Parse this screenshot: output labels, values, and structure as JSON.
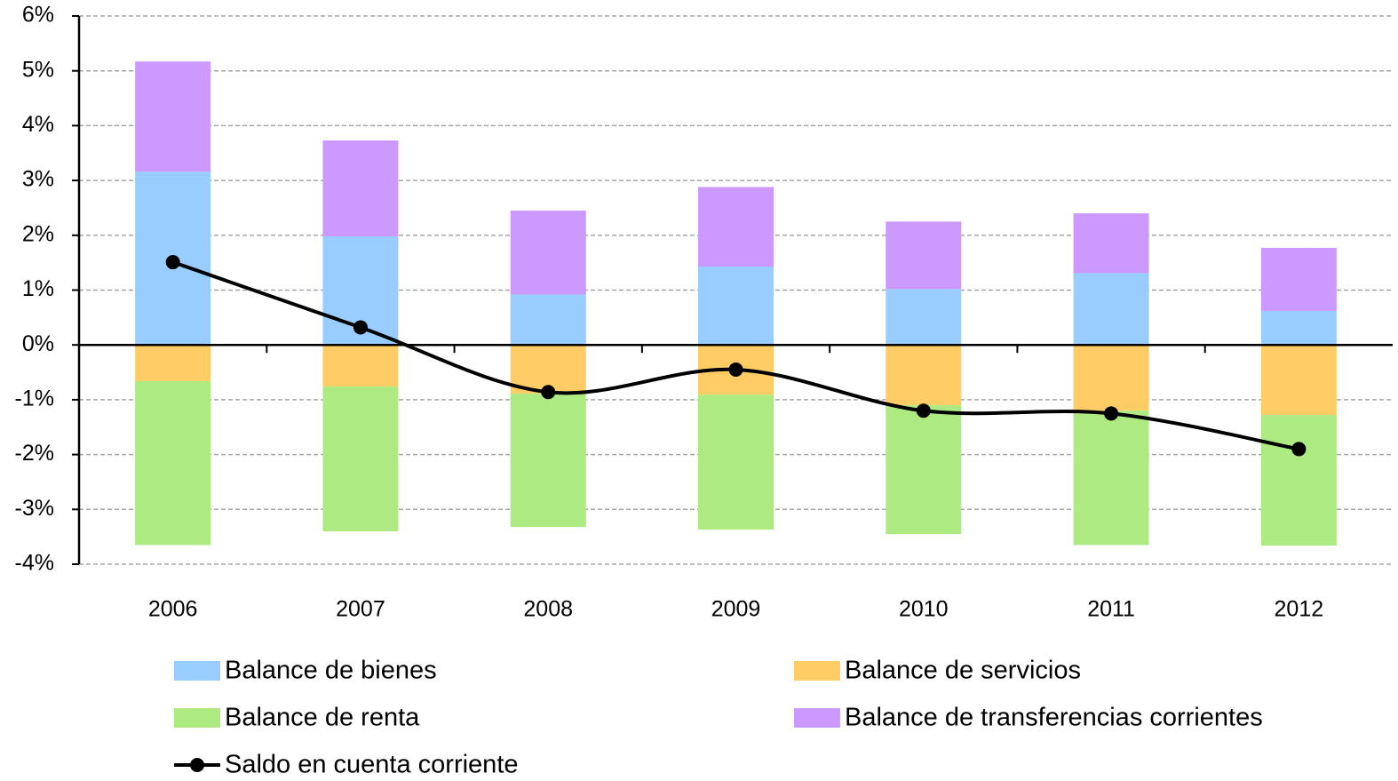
{
  "chart_data": {
    "type": "bar",
    "categories": [
      "2006",
      "2007",
      "2008",
      "2009",
      "2010",
      "2011",
      "2012"
    ],
    "series": [
      {
        "name": "Balance de bienes",
        "color": "#99ccff",
        "values": [
          3.16,
          1.98,
          0.92,
          1.43,
          1.02,
          1.31,
          0.62
        ]
      },
      {
        "name": "Balance de servicios",
        "color": "#ffcc66",
        "values": [
          -0.66,
          -0.76,
          -0.89,
          -0.91,
          -1.1,
          -1.2,
          -1.28
        ]
      },
      {
        "name": "Balance de renta",
        "color": "#aeea82",
        "values": [
          -2.99,
          -2.64,
          -2.43,
          -2.46,
          -2.35,
          -2.45,
          -2.38
        ]
      },
      {
        "name": "Balance de transferencias corrientes",
        "color": "#cc99ff",
        "values": [
          2.01,
          1.75,
          1.53,
          1.45,
          1.23,
          1.09,
          1.15
        ]
      },
      {
        "name": "Saldo en cuenta corriente",
        "type": "line",
        "color": "#000000",
        "values": [
          1.51,
          0.32,
          -0.86,
          -0.45,
          -1.2,
          -1.25,
          -1.9
        ]
      }
    ],
    "stacked": true,
    "ylim": [
      -4,
      6
    ],
    "yticks": [
      {
        "value": -4,
        "label": "-4%"
      },
      {
        "value": -3,
        "label": "-3%"
      },
      {
        "value": -2,
        "label": "-2%"
      },
      {
        "value": -1,
        "label": "-1%"
      },
      {
        "value": 0,
        "label": "0%"
      },
      {
        "value": 1,
        "label": "1%"
      },
      {
        "value": 2,
        "label": "2%"
      },
      {
        "value": 3,
        "label": "3%"
      },
      {
        "value": 4,
        "label": "4%"
      },
      {
        "value": 5,
        "label": "5%"
      },
      {
        "value": 6,
        "label": "6%"
      }
    ],
    "grid": true,
    "legend": "bottom"
  }
}
